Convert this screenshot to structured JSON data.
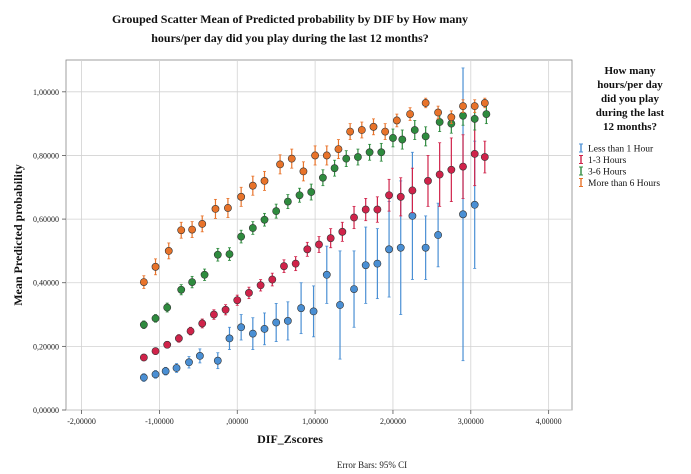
{
  "chart_data": {
    "type": "scatter",
    "title": "Grouped Scatter Mean of Predicted probability by DIF by How many hours/per day did you play during the last 12 months?",
    "title_lines": [
      "Grouped Scatter Mean of Predicted probability by DIF by How many",
      "hours/per day did you play during the last 12 months?"
    ],
    "xlabel": "DIF_Zscores",
    "ylabel": "Mean Predicted probability",
    "footnote": "Error Bars: 95% CI",
    "xlim": [
      -2.2,
      4.3
    ],
    "ylim": [
      0,
      1.1
    ],
    "x_ticks": [
      -2,
      -1,
      0,
      1,
      2,
      3,
      4
    ],
    "x_tick_labels": [
      "-2,00000",
      "-1,00000",
      ",00000",
      "1,00000",
      "2,00000",
      "3,00000",
      "4,00000"
    ],
    "y_ticks": [
      0,
      0.2,
      0.4,
      0.6,
      0.8,
      1.0
    ],
    "y_tick_labels": [
      "0,00000",
      "0,20000",
      "0,40000",
      "0,60000",
      "0,80000",
      "1,00000"
    ],
    "grid": true,
    "legend": {
      "title_lines": [
        "How many",
        "hours/per day",
        "did you play",
        "during the last",
        "12 months?"
      ],
      "placement": "right"
    },
    "series": [
      {
        "name": "Less than 1 Hour",
        "color": "#4a8fd4",
        "points": [
          [
            -1.2,
            0.102,
            0.012
          ],
          [
            -1.05,
            0.112,
            0.012
          ],
          [
            -0.92,
            0.122,
            0.012
          ],
          [
            -0.78,
            0.132,
            0.014
          ],
          [
            -0.62,
            0.15,
            0.018
          ],
          [
            -0.48,
            0.17,
            0.022
          ],
          [
            -0.25,
            0.155,
            0.025
          ],
          [
            -0.1,
            0.225,
            0.035
          ],
          [
            0.05,
            0.26,
            0.04
          ],
          [
            0.2,
            0.24,
            0.05
          ],
          [
            0.35,
            0.255,
            0.05
          ],
          [
            0.5,
            0.275,
            0.06
          ],
          [
            0.65,
            0.28,
            0.06
          ],
          [
            0.82,
            0.32,
            0.08
          ],
          [
            0.98,
            0.31,
            0.08
          ],
          [
            1.15,
            0.425,
            0.09
          ],
          [
            1.32,
            0.33,
            0.17
          ],
          [
            1.5,
            0.38,
            0.12
          ],
          [
            1.65,
            0.455,
            0.12
          ],
          [
            1.8,
            0.46,
            0.11
          ],
          [
            1.95,
            0.505,
            0.15
          ],
          [
            2.1,
            0.51,
            0.21
          ],
          [
            2.25,
            0.61,
            0.2
          ],
          [
            2.42,
            0.51,
            0.1
          ],
          [
            2.58,
            0.55,
            0.1
          ],
          [
            2.9,
            0.615,
            0.46
          ],
          [
            3.05,
            0.645,
            0.2
          ]
        ]
      },
      {
        "name": "1-3 Hours",
        "color": "#d0234a",
        "points": [
          [
            -1.2,
            0.165,
            0.01
          ],
          [
            -1.05,
            0.185,
            0.01
          ],
          [
            -0.9,
            0.205,
            0.01
          ],
          [
            -0.75,
            0.225,
            0.012
          ],
          [
            -0.6,
            0.248,
            0.012
          ],
          [
            -0.45,
            0.272,
            0.014
          ],
          [
            -0.3,
            0.3,
            0.015
          ],
          [
            -0.15,
            0.315,
            0.016
          ],
          [
            0.0,
            0.345,
            0.016
          ],
          [
            0.15,
            0.368,
            0.018
          ],
          [
            0.3,
            0.392,
            0.018
          ],
          [
            0.45,
            0.41,
            0.02
          ],
          [
            0.6,
            0.452,
            0.02
          ],
          [
            0.75,
            0.46,
            0.022
          ],
          [
            0.9,
            0.505,
            0.022
          ],
          [
            1.05,
            0.52,
            0.025
          ],
          [
            1.2,
            0.54,
            0.03
          ],
          [
            1.35,
            0.56,
            0.03
          ],
          [
            1.5,
            0.605,
            0.035
          ],
          [
            1.65,
            0.63,
            0.035
          ],
          [
            1.8,
            0.63,
            0.04
          ],
          [
            1.95,
            0.675,
            0.05
          ],
          [
            2.1,
            0.67,
            0.06
          ],
          [
            2.25,
            0.69,
            0.07
          ],
          [
            2.45,
            0.72,
            0.08
          ],
          [
            2.6,
            0.74,
            0.1
          ],
          [
            2.75,
            0.755,
            0.1
          ],
          [
            2.9,
            0.765,
            0.1
          ],
          [
            3.05,
            0.805,
            0.1
          ],
          [
            3.18,
            0.795,
            0.05
          ]
        ]
      },
      {
        "name": "3-6 Hours",
        "color": "#2e8b3e",
        "points": [
          [
            -1.2,
            0.268,
            0.012
          ],
          [
            -1.05,
            0.288,
            0.012
          ],
          [
            -0.9,
            0.322,
            0.014
          ],
          [
            -0.72,
            0.378,
            0.016
          ],
          [
            -0.58,
            0.402,
            0.018
          ],
          [
            -0.42,
            0.425,
            0.018
          ],
          [
            -0.25,
            0.488,
            0.02
          ],
          [
            -0.1,
            0.49,
            0.02
          ],
          [
            0.05,
            0.545,
            0.02
          ],
          [
            0.2,
            0.572,
            0.02
          ],
          [
            0.35,
            0.598,
            0.02
          ],
          [
            0.5,
            0.625,
            0.022
          ],
          [
            0.65,
            0.655,
            0.022
          ],
          [
            0.8,
            0.675,
            0.022
          ],
          [
            0.95,
            0.685,
            0.025
          ],
          [
            1.1,
            0.73,
            0.025
          ],
          [
            1.25,
            0.76,
            0.025
          ],
          [
            1.4,
            0.79,
            0.025
          ],
          [
            1.55,
            0.795,
            0.025
          ],
          [
            1.7,
            0.81,
            0.025
          ],
          [
            1.85,
            0.81,
            0.028
          ],
          [
            2.0,
            0.855,
            0.028
          ],
          [
            2.12,
            0.85,
            0.03
          ],
          [
            2.28,
            0.88,
            0.03
          ],
          [
            2.42,
            0.86,
            0.03
          ],
          [
            2.6,
            0.905,
            0.03
          ],
          [
            2.75,
            0.9,
            0.03
          ],
          [
            2.9,
            0.925,
            0.03
          ],
          [
            3.05,
            0.915,
            0.035
          ],
          [
            3.2,
            0.93,
            0.03
          ]
        ]
      },
      {
        "name": "More than 6 Hours",
        "color": "#e8732a",
        "points": [
          [
            -1.2,
            0.402,
            0.02
          ],
          [
            -1.05,
            0.45,
            0.025
          ],
          [
            -0.88,
            0.5,
            0.025
          ],
          [
            -0.72,
            0.565,
            0.025
          ],
          [
            -0.58,
            0.567,
            0.025
          ],
          [
            -0.45,
            0.585,
            0.025
          ],
          [
            -0.28,
            0.632,
            0.03
          ],
          [
            -0.12,
            0.635,
            0.03
          ],
          [
            0.05,
            0.67,
            0.03
          ],
          [
            0.2,
            0.705,
            0.03
          ],
          [
            0.35,
            0.72,
            0.03
          ],
          [
            0.55,
            0.772,
            0.03
          ],
          [
            0.7,
            0.79,
            0.03
          ],
          [
            0.85,
            0.75,
            0.03
          ],
          [
            1.0,
            0.8,
            0.03
          ],
          [
            1.15,
            0.8,
            0.03
          ],
          [
            1.3,
            0.82,
            0.03
          ],
          [
            1.45,
            0.875,
            0.025
          ],
          [
            1.6,
            0.88,
            0.025
          ],
          [
            1.75,
            0.89,
            0.025
          ],
          [
            1.9,
            0.875,
            0.025
          ],
          [
            2.05,
            0.91,
            0.02
          ],
          [
            2.22,
            0.93,
            0.02
          ],
          [
            2.42,
            0.965,
            0.015
          ],
          [
            2.58,
            0.935,
            0.02
          ],
          [
            2.75,
            0.92,
            0.02
          ],
          [
            2.9,
            0.955,
            0.02
          ],
          [
            3.05,
            0.955,
            0.02
          ],
          [
            3.18,
            0.965,
            0.015
          ]
        ]
      }
    ]
  }
}
